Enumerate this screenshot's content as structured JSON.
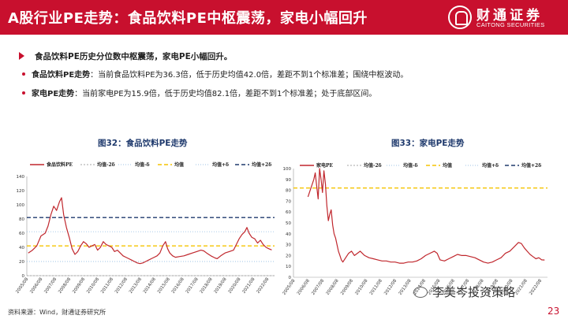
{
  "header": {
    "title": "A股行业PE走势：食品饮料PE中枢震荡，家电小幅回升",
    "logo_cn": "财通证券",
    "logo_en": "CAITONG SECURITIES"
  },
  "summary": {
    "headline": "食品饮料PE历史分位数中枢震荡，家电PE小幅回升。",
    "bullets": [
      {
        "label": "食品饮料PE走势",
        "text": "：当前食品饮料PE为36.3倍，低于历史均值42.0倍，差距不到1个标准差；围绕中枢波动。"
      },
      {
        "label": "家电PE走势",
        "text": "：当前家电PE为15.9倍，低于历史均值82.1倍，差距不到1个标准差；处于底部区间。"
      }
    ]
  },
  "chart_data": [
    {
      "type": "line",
      "title": "图32：食品饮料PE走势",
      "legend": [
        "食品饮料PE",
        "均值-2δ",
        "均值-δ",
        "均值",
        "均值+δ",
        "均值+2δ"
      ],
      "legend_position": "top",
      "ylim": [
        0,
        140
      ],
      "yticks": [
        0,
        20,
        40,
        60,
        80,
        100,
        120,
        140
      ],
      "x_tick_labels": [
        "2005/08",
        "2006/08",
        "2007/08",
        "2008/08",
        "2009/08",
        "2010/08",
        "2011/08",
        "2012/08",
        "2013/08",
        "2014/08",
        "2015/08",
        "2016/08",
        "2017/08",
        "2018/08",
        "2019/08",
        "2020/08",
        "2021/08",
        "2022/08"
      ],
      "reference_lines": {
        "mean_minus_2sd": 0,
        "mean_minus_sd": 20,
        "mean": 42.0,
        "mean_plus_sd": 62,
        "mean_plus_2sd": 82
      },
      "colors": {
        "series": "#c0272d",
        "mean_minus_2sd": "#a6a6a6",
        "mean_minus_sd": "#9dc3e6",
        "mean": "#f5c400",
        "mean_plus_sd": "#9dc3e6",
        "mean_plus_2sd": "#1f3a6d"
      },
      "series": [
        {
          "name": "食品饮料PE",
          "x": [
            2005.6,
            2005.9,
            2006.2,
            2006.5,
            2006.8,
            2007.0,
            2007.2,
            2007.4,
            2007.6,
            2007.8,
            2007.95,
            2008.1,
            2008.3,
            2008.5,
            2008.7,
            2008.9,
            2009.1,
            2009.3,
            2009.5,
            2009.7,
            2009.9,
            2010.1,
            2010.3,
            2010.5,
            2010.7,
            2010.9,
            2011.1,
            2011.3,
            2011.5,
            2011.7,
            2011.9,
            2012.1,
            2012.3,
            2012.5,
            2012.7,
            2012.9,
            2013.1,
            2013.3,
            2013.5,
            2013.7,
            2013.9,
            2014.1,
            2014.3,
            2014.5,
            2014.7,
            2014.9,
            2015.1,
            2015.3,
            2015.45,
            2015.6,
            2015.8,
            2016.0,
            2016.3,
            2016.6,
            2016.9,
            2017.2,
            2017.5,
            2017.8,
            2018.0,
            2018.2,
            2018.5,
            2018.8,
            2018.95,
            2019.2,
            2019.5,
            2019.8,
            2020.1,
            2020.3,
            2020.5,
            2020.7,
            2020.9,
            2021.05,
            2021.2,
            2021.4,
            2021.6,
            2021.8,
            2022.0,
            2022.2,
            2022.4,
            2022.6,
            2022.8
          ],
          "values": [
            32,
            36,
            42,
            56,
            60,
            70,
            86,
            98,
            92,
            104,
            110,
            86,
            68,
            54,
            38,
            30,
            34,
            42,
            48,
            45,
            40,
            42,
            44,
            36,
            40,
            48,
            44,
            42,
            40,
            34,
            36,
            32,
            28,
            26,
            24,
            22,
            20,
            18,
            17,
            18,
            20,
            22,
            24,
            26,
            28,
            32,
            42,
            48,
            38,
            32,
            28,
            26,
            27,
            28,
            30,
            32,
            34,
            36,
            35,
            32,
            28,
            25,
            24,
            28,
            32,
            34,
            36,
            44,
            52,
            58,
            62,
            68,
            60,
            54,
            52,
            46,
            50,
            44,
            40,
            38,
            36.3
          ]
        }
      ]
    },
    {
      "type": "line",
      "title": "图33：家电PE走势",
      "legend": [
        "家电PE",
        "均值-2δ",
        "均值-δ",
        "均值",
        "均值+δ",
        "均值+2δ"
      ],
      "legend_position": "top",
      "ylim": [
        0,
        100
      ],
      "yticks": [
        0,
        10,
        20,
        30,
        40,
        50,
        60,
        70,
        80,
        90,
        100
      ],
      "x_tick_labels": [
        "2005/08",
        "2006/08",
        "2007/08",
        "2008/08",
        "2009/08",
        "2010/08",
        "2011/08",
        "2012/08",
        "2013/08",
        "2014/08",
        "2015/08",
        "2016/08",
        "2017/08",
        "2018/08",
        "2019/08",
        "2020/08",
        "2021/08",
        "2022/08"
      ],
      "reference_lines": {
        "mean": 82.1
      },
      "colors": {
        "series": "#c0272d",
        "mean": "#f5c400",
        "mean_minus_2sd": "#a6a6a6",
        "mean_minus_sd": "#9dc3e6",
        "mean_plus_sd": "#9dc3e6",
        "mean_plus_2sd": "#1f3a6d"
      },
      "series": [
        {
          "name": "家电PE",
          "x": [
            2006.5,
            2006.7,
            2006.9,
            2007.0,
            2007.1,
            2007.2,
            2007.3,
            2007.4,
            2007.5,
            2007.6,
            2007.7,
            2007.8,
            2007.9,
            2008.0,
            2008.1,
            2008.2,
            2008.3,
            2008.4,
            2008.5,
            2008.6,
            2008.7,
            2008.8,
            2008.9,
            2009.1,
            2009.3,
            2009.5,
            2009.7,
            2009.9,
            2010.1,
            2010.4,
            2010.7,
            2011.0,
            2011.3,
            2011.6,
            2011.9,
            2012.2,
            2012.5,
            2012.8,
            2013.1,
            2013.4,
            2013.7,
            2014.0,
            2014.3,
            2014.6,
            2014.9,
            2015.2,
            2015.4,
            2015.6,
            2015.9,
            2016.2,
            2016.5,
            2016.8,
            2017.1,
            2017.4,
            2017.7,
            2018.0,
            2018.3,
            2018.6,
            2018.9,
            2019.2,
            2019.5,
            2019.8,
            2020.1,
            2020.4,
            2020.7,
            2021.0,
            2021.2,
            2021.4,
            2021.6,
            2021.8,
            2022.0,
            2022.2,
            2022.4,
            2022.6,
            2022.8
          ],
          "values": [
            74,
            82,
            90,
            96,
            84,
            72,
            100,
            90,
            78,
            98,
            86,
            66,
            52,
            58,
            62,
            48,
            40,
            36,
            30,
            24,
            20,
            16,
            14,
            18,
            22,
            24,
            20,
            22,
            24,
            20,
            18,
            17,
            16,
            15,
            15,
            14,
            14,
            13,
            13,
            14,
            14,
            15,
            17,
            20,
            22,
            24,
            22,
            16,
            15,
            17,
            19,
            21,
            20,
            20,
            19,
            18,
            16,
            14,
            13,
            14,
            16,
            18,
            22,
            24,
            28,
            32,
            31,
            27,
            24,
            21,
            19,
            17,
            18,
            16,
            15.9
          ]
        }
      ]
    }
  ],
  "footer": {
    "source": "资料来源：Wind，财通证券研究所",
    "watermark": "李美岑投资策略",
    "page": "23"
  }
}
